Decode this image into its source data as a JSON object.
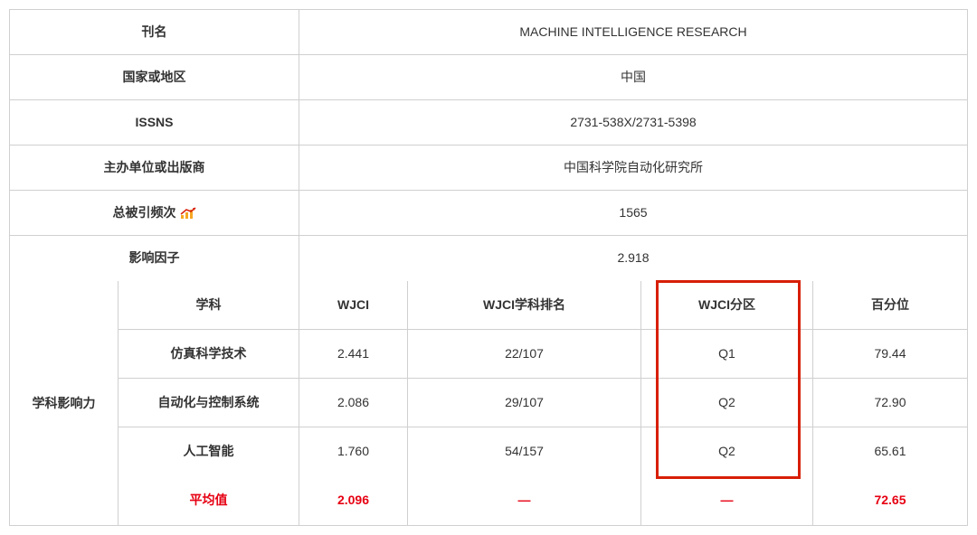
{
  "info_rows": [
    {
      "label": "刊名",
      "value": "MACHINE INTELLIGENCE RESEARCH"
    },
    {
      "label": "国家或地区",
      "value": "中国"
    },
    {
      "label": "ISSNS",
      "value": "2731-538X/2731-5398"
    },
    {
      "label": "主办单位或出版商",
      "value": "中国科学院自动化研究所"
    },
    {
      "label": "总被引频次",
      "value": "1565",
      "has_icon": true
    },
    {
      "label": "影响因子",
      "value": "2.918"
    }
  ],
  "influence": {
    "left_label": "学科影响力",
    "header": {
      "subject": "学科",
      "wjci": "WJCI",
      "rank": "WJCI学科排名",
      "zone": "WJCI分区",
      "pct": "百分位"
    },
    "rows": [
      {
        "subject": "仿真科学技术",
        "wjci": "2.441",
        "rank": "22/107",
        "zone": "Q1",
        "pct": "79.44"
      },
      {
        "subject": "自动化与控制系统",
        "wjci": "2.086",
        "rank": "29/107",
        "zone": "Q2",
        "pct": "72.90"
      },
      {
        "subject": "人工智能",
        "wjci": "1.760",
        "rank": "54/157",
        "zone": "Q2",
        "pct": "65.61"
      }
    ],
    "average": {
      "label": "平均值",
      "wjci": "2.096",
      "rank": "—",
      "zone": "—",
      "pct": "72.65"
    }
  },
  "highlight_box": {
    "color": "#d81e06"
  }
}
